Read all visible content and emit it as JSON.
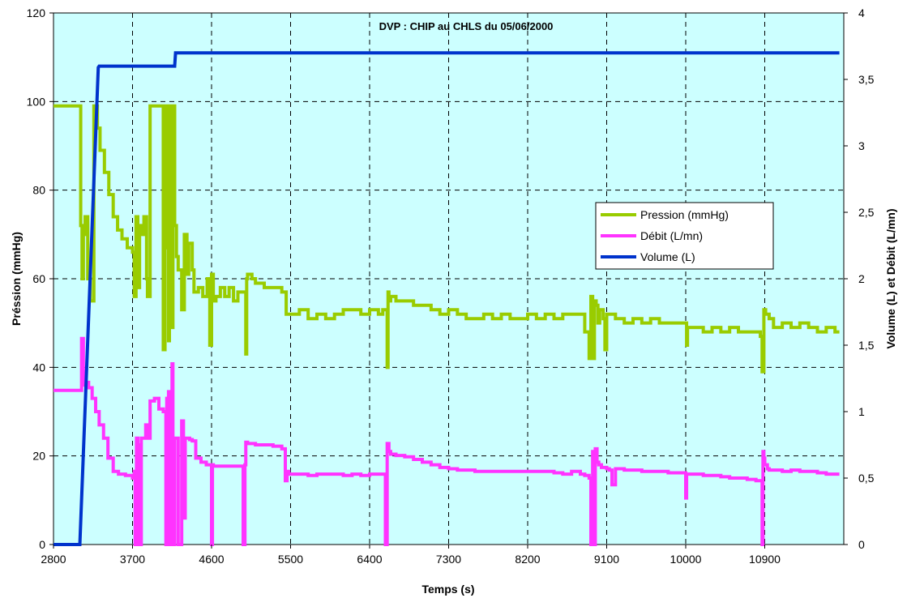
{
  "chart_data": {
    "type": "line",
    "title": "DVP : CHIP au CHLS du 05/06/2000",
    "xlabel": "Temps (s)",
    "ylabel_left": "Préssion (mmHg)",
    "ylabel_right": "Volume (L) et Débit (L/mn)",
    "xlim": [
      2800,
      11800
    ],
    "ylim_left": [
      0,
      120
    ],
    "ylim_right": [
      0,
      4
    ],
    "x_ticks": [
      2800,
      3700,
      4600,
      5500,
      6400,
      7300,
      8200,
      9100,
      10000,
      10900
    ],
    "x_tick_labels": [
      "2800",
      "3700",
      "4600",
      "5500",
      "6400",
      "7300",
      "8200",
      "9100",
      "10000",
      "10900"
    ],
    "y_left_ticks": [
      0,
      20,
      40,
      60,
      80,
      100,
      120
    ],
    "y_left_tick_labels": [
      "0",
      "20",
      "40",
      "60",
      "80",
      "100",
      "120"
    ],
    "y_right_ticks": [
      0,
      0.5,
      1,
      1.5,
      2,
      2.5,
      3,
      3.5,
      4
    ],
    "y_right_tick_labels": [
      "0",
      "0,5",
      "1",
      "1,5",
      "2",
      "2,5",
      "3",
      "3,5",
      "4"
    ],
    "grid": true,
    "legend_position": "right",
    "background_color": "#ccffff",
    "series": [
      {
        "name": "Pression (mmHg)",
        "axis": "left",
        "color": "#99cc00",
        "step": true,
        "x": [
          2800,
          3100,
          3110,
          3125,
          3140,
          3160,
          3190,
          3220,
          3260,
          3300,
          3330,
          3380,
          3430,
          3480,
          3530,
          3580,
          3640,
          3700,
          3720,
          3740,
          3760,
          3780,
          3800,
          3830,
          3860,
          3870,
          3900,
          3950,
          4040,
          4050,
          4070,
          4080,
          4100,
          4110,
          4120,
          4130,
          4140,
          4150,
          4160,
          4180,
          4200,
          4220,
          4260,
          4290,
          4320,
          4340,
          4380,
          4400,
          4450,
          4500,
          4550,
          4580,
          4600,
          4620,
          4650,
          4700,
          4750,
          4800,
          4850,
          4900,
          4950,
          4990,
          5000,
          5010,
          5060,
          5100,
          5200,
          5300,
          5400,
          5450,
          5500,
          5600,
          5700,
          5800,
          5900,
          6000,
          6100,
          6200,
          6300,
          6400,
          6500,
          6550,
          6600,
          6610,
          6620,
          6640,
          6700,
          6800,
          6900,
          7000,
          7100,
          7200,
          7300,
          7400,
          7500,
          7600,
          7700,
          7800,
          7900,
          8000,
          8100,
          8200,
          8300,
          8400,
          8500,
          8600,
          8700,
          8800,
          8850,
          8900,
          8920,
          8940,
          8960,
          8980,
          9000,
          9020,
          9060,
          9080,
          9100,
          9200,
          9300,
          9400,
          9500,
          9600,
          9700,
          9800,
          9900,
          10000,
          10010,
          10020,
          10100,
          10200,
          10300,
          10400,
          10500,
          10600,
          10700,
          10800,
          10850,
          10870,
          10890,
          10910,
          10950,
          11000,
          11100,
          11200,
          11300,
          11400,
          11500,
          11600,
          11700,
          11750
        ],
        "values": [
          99,
          99,
          72,
          60,
          70,
          74,
          60,
          55,
          99,
          94,
          89,
          84,
          79,
          74,
          71,
          69,
          67,
          66,
          56,
          74,
          58,
          72,
          70,
          74,
          60,
          56,
          99,
          99,
          99,
          44,
          99,
          67,
          99,
          46,
          99,
          66,
          99,
          49,
          99,
          72,
          65,
          62,
          53,
          70,
          61,
          68,
          62,
          57,
          58,
          56,
          60,
          45,
          61,
          55,
          56,
          58,
          56,
          58,
          55,
          57,
          57,
          43,
          60,
          61,
          60,
          59,
          58,
          58,
          57,
          52,
          52,
          53,
          51,
          52,
          51,
          52,
          53,
          53,
          52,
          53,
          52,
          53,
          40,
          57,
          55,
          56,
          55,
          55,
          54,
          54,
          53,
          52,
          53,
          52,
          51,
          51,
          52,
          51,
          52,
          51,
          51,
          52,
          51,
          52,
          51,
          52,
          52,
          52,
          48,
          42,
          56,
          42,
          55,
          54,
          50,
          53,
          51,
          44,
          52,
          51,
          50,
          51,
          50,
          51,
          50,
          50,
          50,
          50,
          45,
          49,
          49,
          48,
          49,
          48,
          49,
          48,
          48,
          48,
          47,
          39,
          53,
          52,
          51,
          49,
          50,
          49,
          50,
          49,
          48,
          49,
          48,
          48
        ]
      },
      {
        "name": "Débit (L/mn)",
        "axis": "right",
        "color": "#ff33ff",
        "step": true,
        "x": [
          2800,
          3100,
          3120,
          3140,
          3150,
          3170,
          3200,
          3240,
          3280,
          3320,
          3370,
          3420,
          3480,
          3540,
          3620,
          3700,
          3720,
          3730,
          3745,
          3760,
          3775,
          3790,
          3800,
          3830,
          3850,
          3870,
          3900,
          3950,
          4000,
          4050,
          4080,
          4090,
          4100,
          4110,
          4120,
          4130,
          4140,
          4150,
          4160,
          4180,
          4200,
          4220,
          4260,
          4280,
          4300,
          4350,
          4380,
          4420,
          4480,
          4540,
          4580,
          4600,
          4610,
          4620,
          4650,
          4700,
          4800,
          4900,
          4960,
          4980,
          4990,
          5010,
          5050,
          5100,
          5200,
          5300,
          5400,
          5440,
          5460,
          5480,
          5500,
          5600,
          5700,
          5800,
          5900,
          6000,
          6100,
          6200,
          6300,
          6400,
          6500,
          6560,
          6580,
          6600,
          6620,
          6640,
          6700,
          6800,
          6900,
          7000,
          7100,
          7200,
          7300,
          7400,
          7500,
          7600,
          7700,
          7800,
          7900,
          8000,
          8100,
          8200,
          8300,
          8400,
          8500,
          8600,
          8700,
          8800,
          8850,
          8900,
          8920,
          8940,
          8960,
          8970,
          8990,
          9010,
          9040,
          9080,
          9100,
          9130,
          9160,
          9200,
          9300,
          9400,
          9500,
          9600,
          9700,
          9800,
          9900,
          9990,
          10000,
          10010,
          10020,
          10100,
          10200,
          10300,
          10400,
          10500,
          10600,
          10700,
          10800,
          10870,
          10880,
          10890,
          10900,
          10930,
          10950,
          11000,
          11100,
          11200,
          11300,
          11400,
          11500,
          11600,
          11700,
          11750
        ],
        "values": [
          1.16,
          1.16,
          1.55,
          1.3,
          1.2,
          1.22,
          1.18,
          1.1,
          1.0,
          0.9,
          0.8,
          0.65,
          0.55,
          0.53,
          0.52,
          0.5,
          0.55,
          0.0,
          0.8,
          0.0,
          0.75,
          0.0,
          0.8,
          0.8,
          0.9,
          0.8,
          1.08,
          1.1,
          1.02,
          1.0,
          0.0,
          1.1,
          0.0,
          1.15,
          0.0,
          1.05,
          0.0,
          1.36,
          0.0,
          0.8,
          0.8,
          0.0,
          0.93,
          0.2,
          0.8,
          0.79,
          0.78,
          0.65,
          0.62,
          0.6,
          0.6,
          0.0,
          0.6,
          0.59,
          0.59,
          0.59,
          0.59,
          0.59,
          0.0,
          0.6,
          0.77,
          0.76,
          0.76,
          0.75,
          0.75,
          0.74,
          0.72,
          0.48,
          0.55,
          0.53,
          0.53,
          0.53,
          0.52,
          0.53,
          0.53,
          0.53,
          0.52,
          0.53,
          0.52,
          0.53,
          0.53,
          0.53,
          0.0,
          0.76,
          0.7,
          0.68,
          0.67,
          0.66,
          0.64,
          0.62,
          0.6,
          0.58,
          0.57,
          0.56,
          0.56,
          0.55,
          0.55,
          0.55,
          0.55,
          0.55,
          0.55,
          0.55,
          0.55,
          0.55,
          0.54,
          0.53,
          0.55,
          0.53,
          0.52,
          0.5,
          0.0,
          0.7,
          0.0,
          0.72,
          0.62,
          0.6,
          0.58,
          0.58,
          0.57,
          0.56,
          0.45,
          0.57,
          0.56,
          0.56,
          0.55,
          0.55,
          0.55,
          0.54,
          0.54,
          0.54,
          0.35,
          0.53,
          0.53,
          0.53,
          0.52,
          0.52,
          0.51,
          0.5,
          0.5,
          0.49,
          0.48,
          0.0,
          0.7,
          0.65,
          0.6,
          0.57,
          0.56,
          0.56,
          0.55,
          0.56,
          0.55,
          0.55,
          0.54,
          0.53,
          0.53,
          0.53
        ]
      },
      {
        "name": "Volume (L)",
        "axis": "right",
        "color": "#0033cc",
        "step": false,
        "x": [
          2800,
          3100,
          3310,
          3320,
          4170,
          4180,
          4190,
          11750
        ],
        "values": [
          0.0,
          0.0,
          3.59,
          3.6,
          3.6,
          3.6,
          3.7,
          3.7
        ]
      }
    ]
  }
}
